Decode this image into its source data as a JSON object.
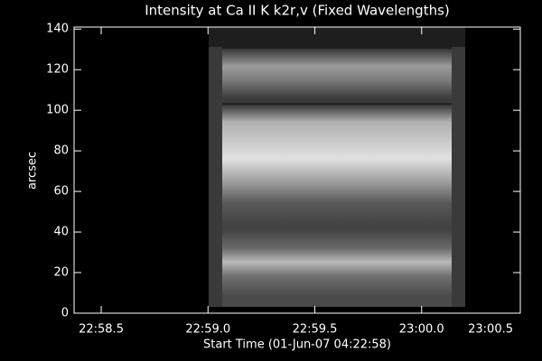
{
  "chart_data": {
    "type": "image",
    "title": "Intensity at Ca II K k2r,v (Fixed Wavelengths)",
    "xlabel": "Start Time (01-Jun-07 04:22:58)",
    "ylabel": "arcsec",
    "xlim": [
      0.373,
      2.462
    ],
    "xticks": [
      {
        "value": 0.5,
        "label": "22:58.5"
      },
      {
        "value": 1.0,
        "label": "22:59.0"
      },
      {
        "value": 1.5,
        "label": "22:59.5"
      },
      {
        "value": 2.0,
        "label": "23:00.0"
      },
      {
        "value": 2.5,
        "label": "23:00.5"
      }
    ],
    "ylim": [
      0,
      141
    ],
    "yticks": [
      0,
      20,
      40,
      60,
      80,
      100,
      120,
      140
    ]
  }
}
